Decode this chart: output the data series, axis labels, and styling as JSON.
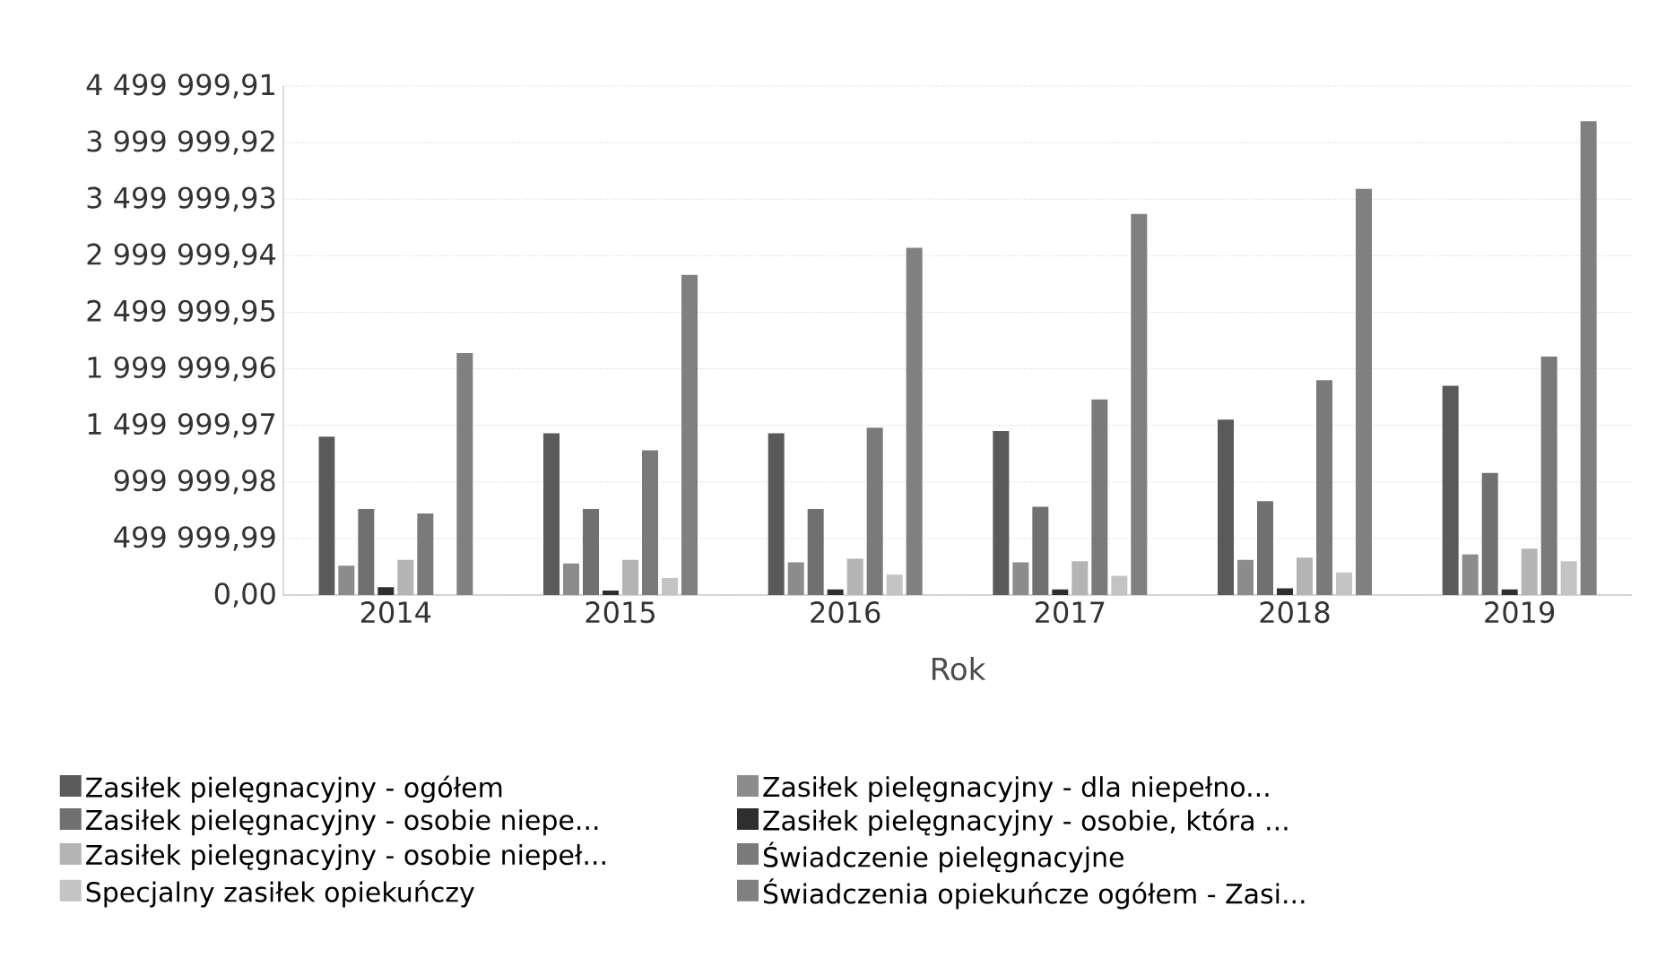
{
  "chart_data": {
    "type": "bar",
    "xlabel": "Rok",
    "categories": [
      "2014",
      "2015",
      "2016",
      "2017",
      "2018",
      "2019"
    ],
    "series": [
      {
        "name": "Zasiłek pielęgnacyjny - ogółem",
        "color": "#5a5a5a",
        "values": [
          1400000,
          1430000,
          1430000,
          1450000,
          1550000,
          1850000
        ]
      },
      {
        "name": "Zasiłek pielęgnacyjny - dla niepełno...",
        "color": "#8c8c8c",
        "values": [
          260000,
          280000,
          290000,
          290000,
          310000,
          360000
        ]
      },
      {
        "name": "Zasiłek pielęgnacyjny - osobie niepe...",
        "color": "#707070",
        "values": [
          760000,
          760000,
          760000,
          780000,
          830000,
          1080000
        ]
      },
      {
        "name": "Zasiłek pielęgnacyjny - osobie, która ...",
        "color": "#2e2e2e",
        "values": [
          70000,
          40000,
          50000,
          50000,
          60000,
          50000
        ]
      },
      {
        "name": "Zasiłek pielęgnacyjny -  osobie niepeł...",
        "color": "#b4b4b4",
        "values": [
          310000,
          310000,
          320000,
          300000,
          330000,
          410000
        ]
      },
      {
        "name": "Świadczenie pielęgnacyjne",
        "color": "#7a7a7a",
        "values": [
          720000,
          1280000,
          1480000,
          1730000,
          1900000,
          2110000
        ]
      },
      {
        "name": "Specjalny zasiłek opiekuńczy",
        "color": "#c4c4c4",
        "values": [
          null,
          150000,
          180000,
          170000,
          200000,
          300000
        ]
      },
      {
        "name": "Świadczenia opiekuńcze ogółem - Zasi...",
        "color": "#808080",
        "values": [
          2140000,
          2830000,
          3070000,
          3370000,
          3590000,
          4190000
        ]
      }
    ],
    "ylim": [
      0,
      4499999.91
    ],
    "yticks": [
      {
        "value": 0,
        "label": "0,00"
      },
      {
        "value": 499999.99,
        "label": "499 999,99"
      },
      {
        "value": 999999.98,
        "label": "999 999,98"
      },
      {
        "value": 1499999.97,
        "label": "1 499 999,97"
      },
      {
        "value": 1999999.96,
        "label": "1 999 999,96"
      },
      {
        "value": 2499999.95,
        "label": "2 499 999,95"
      },
      {
        "value": 2999999.94,
        "label": "2 999 999,94"
      },
      {
        "value": 3499999.93,
        "label": "3 499 999,93"
      },
      {
        "value": 3999999.92,
        "label": "3 999 999,92"
      },
      {
        "value": 4499999.91,
        "label": "4 499 999,91"
      }
    ],
    "grid": "y",
    "legend": "bottom"
  }
}
